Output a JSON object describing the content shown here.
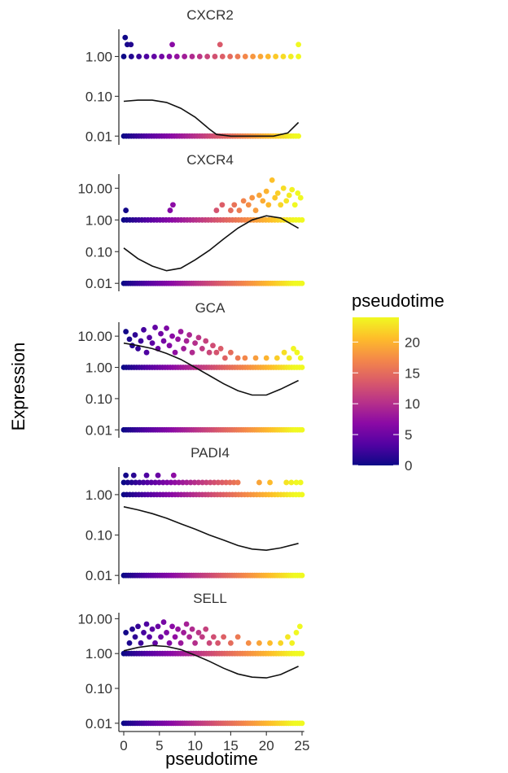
{
  "chart_data": {
    "type": "scatter",
    "xlabel": "pseudotime",
    "ylabel": "Expression",
    "xlim": [
      -1,
      26
    ],
    "x_ticks": [
      0,
      5,
      10,
      15,
      20,
      25
    ],
    "y_scale": "log10",
    "grid": false,
    "legend": {
      "title": "pseudotime",
      "type": "colorbar",
      "position": "right",
      "range": [
        0,
        24
      ],
      "ticks": [
        0,
        5,
        10,
        15,
        20
      ],
      "colors": [
        "#0d0887",
        "#5302a3",
        "#8b0aa5",
        "#b83289",
        "#db5c68",
        "#f48849",
        "#febc2a",
        "#f0f921"
      ]
    },
    "facets": [
      {
        "title": "CXCR2",
        "ylim": [
          0.008,
          4
        ],
        "y_ticks": [
          "0.01",
          "0.10",
          "1.00"
        ],
        "levels": [
          {
            "y": 0.01,
            "x_range": [
              0,
              24.5
            ],
            "count": 70
          },
          {
            "y": 1.0,
            "x_range": [
              0,
              24.5
            ],
            "count": 24
          }
        ],
        "points": [
          {
            "x": 0.2,
            "y": 3.0
          },
          {
            "x": 0.5,
            "y": 2.0
          },
          {
            "x": 1.0,
            "y": 2.0
          },
          {
            "x": 6.8,
            "y": 2.0
          },
          {
            "x": 13.5,
            "y": 2.0
          },
          {
            "x": 24.5,
            "y": 2.0
          }
        ],
        "trend": {
          "x": [
            0,
            2,
            4,
            6,
            8,
            10,
            12,
            13,
            15,
            18,
            21,
            23,
            24.5
          ],
          "y": [
            0.075,
            0.08,
            0.08,
            0.07,
            0.05,
            0.03,
            0.015,
            0.011,
            0.01,
            0.01,
            0.01,
            0.012,
            0.022
          ]
        }
      },
      {
        "title": "CXCR4",
        "ylim": [
          0.008,
          22
        ],
        "y_ticks": [
          "0.01",
          "0.10",
          "1.00",
          "10.00"
        ],
        "levels": [
          {
            "y": 0.01,
            "x_range": [
              0,
              25
            ],
            "count": 80
          },
          {
            "y": 1.0,
            "x_range": [
              0,
              25
            ],
            "count": 60
          }
        ],
        "points": [
          {
            "x": 0.3,
            "y": 2.0
          },
          {
            "x": 6.5,
            "y": 2.0
          },
          {
            "x": 6.9,
            "y": 3.0
          },
          {
            "x": 13.0,
            "y": 2.0
          },
          {
            "x": 13.8,
            "y": 3.0
          },
          {
            "x": 15.0,
            "y": 2.0
          },
          {
            "x": 15.5,
            "y": 3.0
          },
          {
            "x": 16.2,
            "y": 2.0
          },
          {
            "x": 16.8,
            "y": 4.0
          },
          {
            "x": 17.5,
            "y": 3.0
          },
          {
            "x": 18.0,
            "y": 5.0
          },
          {
            "x": 18.5,
            "y": 2.0
          },
          {
            "x": 19.0,
            "y": 6.0
          },
          {
            "x": 19.5,
            "y": 4.0
          },
          {
            "x": 20.0,
            "y": 8.0
          },
          {
            "x": 20.3,
            "y": 3.0
          },
          {
            "x": 20.8,
            "y": 18.0
          },
          {
            "x": 21.2,
            "y": 5.0
          },
          {
            "x": 21.6,
            "y": 7.0
          },
          {
            "x": 22.0,
            "y": 3.0
          },
          {
            "x": 22.4,
            "y": 10.0
          },
          {
            "x": 22.8,
            "y": 4.0
          },
          {
            "x": 23.2,
            "y": 6.0
          },
          {
            "x": 23.6,
            "y": 9.0
          },
          {
            "x": 24.0,
            "y": 3.0
          },
          {
            "x": 24.4,
            "y": 7.0
          },
          {
            "x": 24.8,
            "y": 5.0
          }
        ],
        "trend": {
          "x": [
            0,
            2,
            4,
            6,
            8,
            10,
            12,
            14,
            16,
            18,
            20,
            22,
            24.5
          ],
          "y": [
            0.13,
            0.06,
            0.035,
            0.025,
            0.03,
            0.055,
            0.11,
            0.25,
            0.55,
            1.0,
            1.35,
            1.15,
            0.55
          ]
        }
      },
      {
        "title": "GCA",
        "ylim": [
          0.008,
          22
        ],
        "y_ticks": [
          "0.01",
          "0.10",
          "1.00",
          "10.00"
        ],
        "levels": [
          {
            "y": 0.01,
            "x_range": [
              0,
              25
            ],
            "count": 80
          },
          {
            "y": 1.0,
            "x_range": [
              0,
              25
            ],
            "count": 70
          }
        ],
        "points": [
          {
            "x": 0.3,
            "y": 14.0
          },
          {
            "x": 0.8,
            "y": 8.0
          },
          {
            "x": 1.2,
            "y": 5.0
          },
          {
            "x": 1.6,
            "y": 11.0
          },
          {
            "x": 2.0,
            "y": 4.0
          },
          {
            "x": 2.4,
            "y": 7.0
          },
          {
            "x": 2.8,
            "y": 16.0
          },
          {
            "x": 3.2,
            "y": 3.0
          },
          {
            "x": 3.6,
            "y": 9.0
          },
          {
            "x": 4.0,
            "y": 6.0
          },
          {
            "x": 4.4,
            "y": 19.0
          },
          {
            "x": 4.8,
            "y": 4.0
          },
          {
            "x": 5.2,
            "y": 12.0
          },
          {
            "x": 5.6,
            "y": 7.0
          },
          {
            "x": 6.0,
            "y": 18.0
          },
          {
            "x": 6.4,
            "y": 5.0
          },
          {
            "x": 6.8,
            "y": 10.0
          },
          {
            "x": 7.2,
            "y": 3.0
          },
          {
            "x": 7.6,
            "y": 8.0
          },
          {
            "x": 8.0,
            "y": 14.0
          },
          {
            "x": 8.4,
            "y": 4.0
          },
          {
            "x": 8.8,
            "y": 7.0
          },
          {
            "x": 9.2,
            "y": 11.0
          },
          {
            "x": 9.6,
            "y": 3.0
          },
          {
            "x": 10.0,
            "y": 6.0
          },
          {
            "x": 10.5,
            "y": 9.0
          },
          {
            "x": 11.0,
            "y": 4.0
          },
          {
            "x": 11.5,
            "y": 7.0
          },
          {
            "x": 12.0,
            "y": 3.0
          },
          {
            "x": 12.5,
            "y": 5.0
          },
          {
            "x": 13.0,
            "y": 3.0
          },
          {
            "x": 13.6,
            "y": 4.0
          },
          {
            "x": 14.2,
            "y": 2.0
          },
          {
            "x": 15.0,
            "y": 3.0
          },
          {
            "x": 16.0,
            "y": 2.0
          },
          {
            "x": 17.0,
            "y": 2.0
          },
          {
            "x": 18.5,
            "y": 2.0
          },
          {
            "x": 20.0,
            "y": 2.0
          },
          {
            "x": 21.5,
            "y": 2.0
          },
          {
            "x": 22.5,
            "y": 3.0
          },
          {
            "x": 23.2,
            "y": 2.0
          },
          {
            "x": 23.8,
            "y": 4.0
          },
          {
            "x": 24.3,
            "y": 3.0
          },
          {
            "x": 24.8,
            "y": 2.0
          }
        ],
        "trend": {
          "x": [
            0,
            2,
            4,
            6,
            8,
            10,
            12,
            14,
            16,
            18,
            20,
            22,
            24.5
          ],
          "y": [
            6.0,
            5.0,
            4.0,
            2.8,
            1.8,
            1.0,
            0.55,
            0.3,
            0.18,
            0.13,
            0.13,
            0.2,
            0.38
          ]
        }
      },
      {
        "title": "PADI4",
        "ylim": [
          0.008,
          4
        ],
        "y_ticks": [
          "0.01",
          "0.10",
          "1.00"
        ],
        "levels": [
          {
            "y": 0.01,
            "x_range": [
              0,
              25
            ],
            "count": 80
          },
          {
            "y": 1.0,
            "x_range": [
              0,
              25
            ],
            "count": 60
          },
          {
            "y": 2.0,
            "x_range": [
              0,
              16
            ],
            "count": 30
          }
        ],
        "points": [
          {
            "x": 0.3,
            "y": 3.0
          },
          {
            "x": 1.4,
            "y": 3.0
          },
          {
            "x": 3.2,
            "y": 3.0
          },
          {
            "x": 4.8,
            "y": 3.0
          },
          {
            "x": 7.0,
            "y": 3.0
          },
          {
            "x": 19.0,
            "y": 2.0
          },
          {
            "x": 20.5,
            "y": 2.0
          },
          {
            "x": 22.8,
            "y": 2.0
          },
          {
            "x": 23.5,
            "y": 2.0
          },
          {
            "x": 24.2,
            "y": 2.0
          },
          {
            "x": 24.8,
            "y": 2.0
          }
        ],
        "trend": {
          "x": [
            0,
            2,
            4,
            6,
            8,
            10,
            12,
            14,
            16,
            18,
            20,
            22,
            24.5
          ],
          "y": [
            0.5,
            0.42,
            0.34,
            0.26,
            0.19,
            0.14,
            0.1,
            0.075,
            0.055,
            0.045,
            0.042,
            0.048,
            0.062
          ]
        }
      },
      {
        "title": "SELL",
        "ylim": [
          0.008,
          12
        ],
        "y_ticks": [
          "0.01",
          "0.10",
          "1.00",
          "10.00"
        ],
        "levels": [
          {
            "y": 0.01,
            "x_range": [
              0,
              25
            ],
            "count": 80
          },
          {
            "y": 1.0,
            "x_range": [
              0,
              25
            ],
            "count": 70
          }
        ],
        "points": [
          {
            "x": 0.3,
            "y": 4.0
          },
          {
            "x": 0.8,
            "y": 2.0
          },
          {
            "x": 1.2,
            "y": 5.0
          },
          {
            "x": 1.6,
            "y": 3.0
          },
          {
            "x": 2.0,
            "y": 6.0
          },
          {
            "x": 2.4,
            "y": 2.0
          },
          {
            "x": 2.8,
            "y": 4.0
          },
          {
            "x": 3.2,
            "y": 7.0
          },
          {
            "x": 3.6,
            "y": 3.0
          },
          {
            "x": 4.0,
            "y": 5.0
          },
          {
            "x": 4.4,
            "y": 2.0
          },
          {
            "x": 4.8,
            "y": 6.0
          },
          {
            "x": 5.2,
            "y": 3.0
          },
          {
            "x": 5.6,
            "y": 8.0
          },
          {
            "x": 6.0,
            "y": 4.0
          },
          {
            "x": 6.4,
            "y": 2.0
          },
          {
            "x": 6.8,
            "y": 6.0
          },
          {
            "x": 7.2,
            "y": 3.0
          },
          {
            "x": 7.6,
            "y": 5.0
          },
          {
            "x": 8.0,
            "y": 2.0
          },
          {
            "x": 8.4,
            "y": 4.0
          },
          {
            "x": 8.8,
            "y": 7.0
          },
          {
            "x": 9.2,
            "y": 3.0
          },
          {
            "x": 9.6,
            "y": 5.0
          },
          {
            "x": 10.0,
            "y": 2.0
          },
          {
            "x": 10.5,
            "y": 4.0
          },
          {
            "x": 11.0,
            "y": 3.0
          },
          {
            "x": 11.5,
            "y": 5.0
          },
          {
            "x": 12.0,
            "y": 2.0
          },
          {
            "x": 12.6,
            "y": 3.0
          },
          {
            "x": 13.2,
            "y": 2.0
          },
          {
            "x": 14.0,
            "y": 3.0
          },
          {
            "x": 15.0,
            "y": 2.0
          },
          {
            "x": 16.0,
            "y": 3.0
          },
          {
            "x": 17.5,
            "y": 2.0
          },
          {
            "x": 19.0,
            "y": 2.0
          },
          {
            "x": 20.5,
            "y": 2.0
          },
          {
            "x": 22.0,
            "y": 2.0
          },
          {
            "x": 23.0,
            "y": 3.0
          },
          {
            "x": 23.6,
            "y": 2.0
          },
          {
            "x": 24.2,
            "y": 4.0
          },
          {
            "x": 24.7,
            "y": 6.0
          }
        ],
        "trend": {
          "x": [
            0,
            2,
            4,
            6,
            8,
            10,
            12,
            14,
            16,
            18,
            20,
            22,
            24.5
          ],
          "y": [
            1.2,
            1.5,
            1.7,
            1.6,
            1.3,
            0.9,
            0.6,
            0.38,
            0.26,
            0.21,
            0.2,
            0.25,
            0.43
          ]
        }
      }
    ]
  }
}
